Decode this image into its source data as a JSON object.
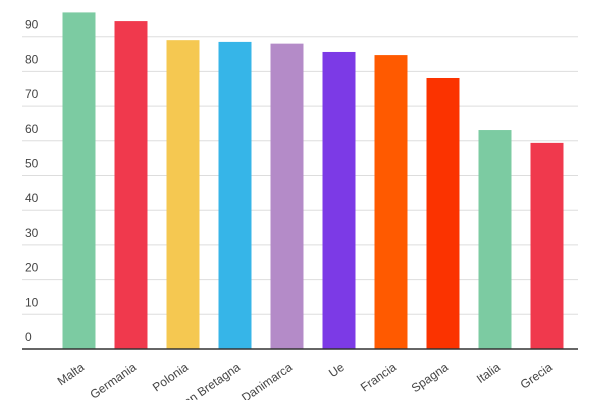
{
  "chart_data": {
    "type": "bar",
    "categories": [
      "Malta",
      "Germania",
      "Polonia",
      "Gran Bretagna",
      "Danimarca",
      "Ue",
      "Francia",
      "Spagna",
      "Italia",
      "Grecia"
    ],
    "values": [
      97,
      94.5,
      89,
      88.5,
      88,
      85.6,
      84.7,
      78.1,
      63.1,
      59.4
    ],
    "colors": [
      "#7ccba2",
      "#f0394d",
      "#f5c851",
      "#36b5e8",
      "#b48bc8",
      "#7c3ae6",
      "#ff5a00",
      "#fb3300",
      "#7ccba2",
      "#f0394d"
    ],
    "ylim": [
      0,
      100
    ],
    "yticks": [
      0,
      10,
      20,
      30,
      40,
      50,
      60,
      70,
      80,
      90
    ],
    "grid": true
  }
}
